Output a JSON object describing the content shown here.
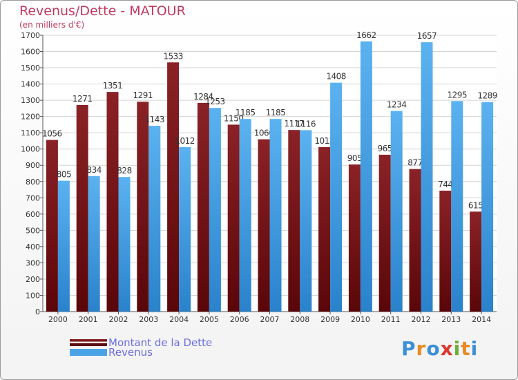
{
  "title": "Revenus/Dette - MATOUR",
  "subtitle": "(en milliers d'€)",
  "logo_text": "Proxiti",
  "colors": {
    "dette": "#7a1518",
    "revenus": "#4aa3e6",
    "title": "#c03a5f",
    "legend_text": "#6a6ee0"
  },
  "chart_data": {
    "type": "bar",
    "categories": [
      "2000",
      "2001",
      "2002",
      "2003",
      "2004",
      "2005",
      "2006",
      "2007",
      "2008",
      "2009",
      "2010",
      "2011",
      "2012",
      "2013",
      "2014"
    ],
    "series": [
      {
        "name": "Montant de la Dette",
        "values": [
          1056,
          1271,
          1351,
          1291,
          1533,
          1284,
          1150,
          1060,
          1117,
          1012,
          905,
          965,
          877,
          744,
          615
        ]
      },
      {
        "name": "Revenus",
        "values": [
          805,
          834,
          828,
          1143,
          1012,
          1253,
          1185,
          1185,
          1116,
          1408,
          1662,
          1234,
          1657,
          1295,
          1289
        ]
      }
    ],
    "ylim": [
      0,
      1700
    ],
    "yticks": [
      0,
      100,
      200,
      300,
      400,
      500,
      600,
      700,
      800,
      900,
      1000,
      1100,
      1200,
      1300,
      1400,
      1500,
      1600,
      1700
    ],
    "grid": true,
    "legend_position": "bottom-left"
  }
}
